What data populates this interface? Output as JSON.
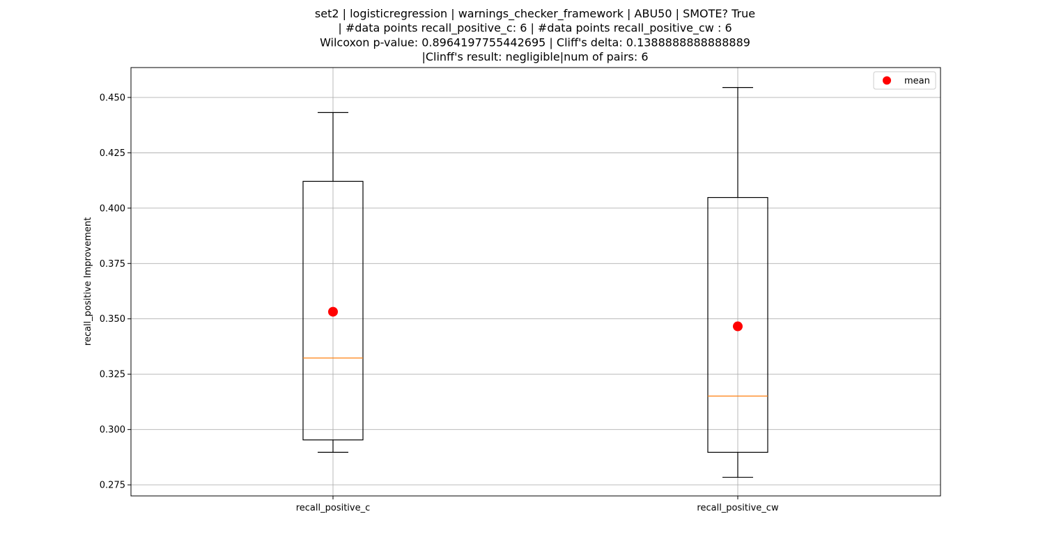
{
  "chart_data": {
    "type": "box",
    "title_lines": [
      "set2 | logisticregression | warnings_checker_framework | ABU50 | SMOTE? True",
      "| #data points recall_positive_c: 6 | #data points recall_positive_cw : 6",
      "Wilcoxon p-value: 0.8964197755442695 | Cliff's delta: 0.1388888888888889",
      "|Clinff's result: negligible|num of pairs: 6"
    ],
    "ylabel": "recall_positive Improvement",
    "xlabel": "",
    "ylim": [
      0.27,
      0.4635
    ],
    "yticks": [
      0.275,
      0.3,
      0.325,
      0.35,
      0.375,
      0.4,
      0.425,
      0.45
    ],
    "ytick_labels": [
      "0.275",
      "0.300",
      "0.325",
      "0.350",
      "0.375",
      "0.400",
      "0.425",
      "0.450"
    ],
    "grid": true,
    "legend": {
      "position": "top-right",
      "entries": [
        "mean"
      ]
    },
    "colors": {
      "box": "#000000",
      "median": "#ff7f0e",
      "mean": "#ff0000",
      "grid": "#b0b0b0"
    },
    "categories": [
      "recall_positive_c",
      "recall_positive_cw"
    ],
    "boxes": [
      {
        "label": "recall_positive_c",
        "whisker_low": 0.2897,
        "q1": 0.2953,
        "median": 0.3323,
        "q3": 0.4121,
        "whisker_high": 0.4432,
        "mean": 0.3532
      },
      {
        "label": "recall_positive_cw",
        "whisker_low": 0.2784,
        "q1": 0.2897,
        "median": 0.3151,
        "q3": 0.4048,
        "whisker_high": 0.4545,
        "mean": 0.3466
      }
    ]
  }
}
